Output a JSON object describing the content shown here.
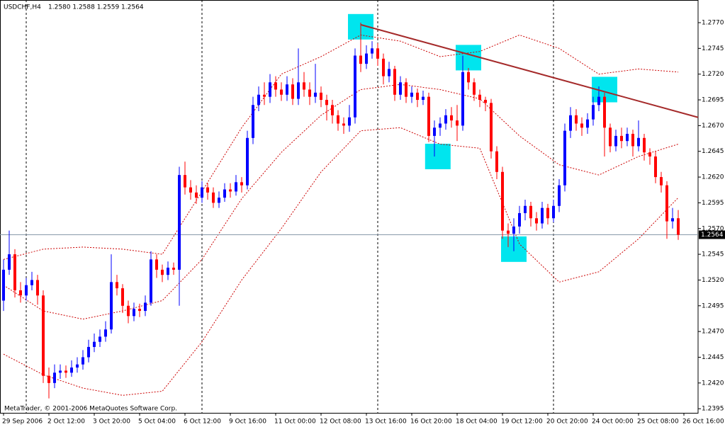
{
  "chart_data": {
    "type": "candlestick",
    "title": "USDCHF,H4",
    "header_quote": "1.2580 1.2588 1.2559 1.2564",
    "annotation": "MetaTrader, © 2001-2006 MetaQuotes Software Corp.",
    "bull_color": "#0000ff",
    "bear_color": "#ff0000",
    "open": [
      1.25,
      1.253,
      1.2545,
      1.251,
      1.2505,
      1.2515,
      1.252,
      1.2505,
      1.2427,
      1.242,
      1.243,
      1.2432,
      1.243,
      1.2435,
      1.2438,
      1.2445,
      1.2455,
      1.246,
      1.2465,
      1.2472,
      1.2518,
      1.2512,
      1.2495,
      1.2485,
      1.2492,
      1.249,
      1.2498,
      1.254,
      1.253,
      1.2525,
      1.2532,
      1.253,
      1.2622,
      1.261,
      1.2605,
      1.26,
      1.261,
      1.2605,
      1.2595,
      1.26,
      1.2608,
      1.2606,
      1.2615,
      1.2612,
      1.2658,
      1.269,
      1.27,
      1.2698,
      1.2712,
      1.2705,
      1.27,
      1.271,
      1.2696,
      1.2712,
      1.2705,
      1.2698,
      1.2702,
      1.2695,
      1.269,
      1.268,
      1.2672,
      1.267,
      1.2678,
      1.2738,
      1.273,
      1.274,
      1.2745,
      1.2735,
      1.2718,
      1.2725,
      1.27,
      1.2712,
      1.2698,
      1.2702,
      1.2695,
      1.2698,
      1.266,
      1.2668,
      1.2672,
      1.268,
      1.2675,
      1.267,
      1.2722,
      1.2712,
      1.27,
      1.2695,
      1.2692,
      1.2645,
      1.2625,
      1.2568,
      1.2565,
      1.2572,
      1.2585,
      1.2592,
      1.258,
      1.2575,
      1.259,
      1.258,
      1.2592,
      1.2612,
      1.2665,
      1.268,
      1.2672,
      1.2668,
      1.2676,
      1.269,
      1.2698,
      1.2668,
      1.265,
      1.266,
      1.2655,
      1.2662,
      1.265,
      1.2658,
      1.2644,
      1.264,
      1.262,
      1.2612,
      1.2577,
      1.258
    ],
    "high": [
      1.254,
      1.2568,
      1.255,
      1.2518,
      1.2522,
      1.2528,
      1.2525,
      1.251,
      1.2435,
      1.2438,
      1.2438,
      1.2437,
      1.2442,
      1.2445,
      1.2452,
      1.2462,
      1.2468,
      1.2472,
      1.248,
      1.2545,
      1.2525,
      1.2516,
      1.25,
      1.2498,
      1.2497,
      1.2505,
      1.2548,
      1.2545,
      1.2535,
      1.2538,
      1.2537,
      1.263,
      1.2635,
      1.2617,
      1.2612,
      1.2616,
      1.2614,
      1.261,
      1.2606,
      1.2614,
      1.2614,
      1.2622,
      1.262,
      1.2665,
      1.2698,
      1.2708,
      1.2712,
      1.272,
      1.2718,
      1.2712,
      1.2718,
      1.2716,
      1.2745,
      1.2722,
      1.2712,
      1.273,
      1.2708,
      1.27,
      1.2695,
      1.2685,
      1.2678,
      1.269,
      1.2745,
      1.277,
      1.2748,
      1.2752,
      1.275,
      1.274,
      1.2732,
      1.2728,
      1.2718,
      1.2716,
      1.2708,
      1.2706,
      1.2704,
      1.2702,
      1.2675,
      1.2678,
      1.2686,
      1.2688,
      1.269,
      1.2738,
      1.2726,
      1.2716,
      1.2705,
      1.2698,
      1.2696,
      1.265,
      1.263,
      1.2575,
      1.258,
      1.2592,
      1.2598,
      1.2596,
      1.2586,
      1.2596,
      1.2594,
      1.2598,
      1.2618,
      1.2672,
      1.2688,
      1.2686,
      1.2678,
      1.2682,
      1.2698,
      1.2708,
      1.2702,
      1.2672,
      1.2666,
      1.2668,
      1.2668,
      1.2666,
      1.2675,
      1.2662,
      1.2648,
      1.2645,
      1.2625,
      1.2616,
      1.259,
      1.2588
    ],
    "low": [
      1.249,
      1.2525,
      1.2503,
      1.2498,
      1.25,
      1.251,
      1.2496,
      1.242,
      1.2405,
      1.2415,
      1.2424,
      1.2425,
      1.2426,
      1.243,
      1.2433,
      1.244,
      1.245,
      1.2455,
      1.246,
      1.2468,
      1.2505,
      1.2488,
      1.2478,
      1.248,
      1.2484,
      1.2485,
      1.2495,
      1.2522,
      1.2518,
      1.252,
      1.2525,
      1.2495,
      1.2603,
      1.2598,
      1.2594,
      1.2595,
      1.2598,
      1.259,
      1.259,
      1.2596,
      1.26,
      1.2602,
      1.2605,
      1.2608,
      1.2652,
      1.2684,
      1.269,
      1.2692,
      1.2698,
      1.2694,
      1.2694,
      1.269,
      1.269,
      1.2698,
      1.269,
      1.2692,
      1.2688,
      1.2675,
      1.2672,
      1.2665,
      1.2662,
      1.2664,
      1.2672,
      1.2722,
      1.2725,
      1.2735,
      1.2728,
      1.271,
      1.2712,
      1.2694,
      1.2695,
      1.2692,
      1.2692,
      1.2688,
      1.269,
      1.2654,
      1.264,
      1.266,
      1.2666,
      1.2668,
      1.2655,
      1.2665,
      1.2705,
      1.2694,
      1.2688,
      1.2684,
      1.2638,
      1.2618,
      1.256,
      1.2552,
      1.2548,
      1.2565,
      1.2578,
      1.2572,
      1.2568,
      1.257,
      1.2574,
      1.2576,
      1.2586,
      1.2606,
      1.2658,
      1.2665,
      1.266,
      1.2662,
      1.267,
      1.2684,
      1.264,
      1.2644,
      1.2645,
      1.2648,
      1.265,
      1.264,
      1.2645,
      1.2636,
      1.2632,
      1.2614,
      1.2605,
      1.256,
      1.257,
      1.2559
    ],
    "close": [
      1.253,
      1.2545,
      1.251,
      1.2505,
      1.2515,
      1.252,
      1.2505,
      1.2427,
      1.242,
      1.243,
      1.2432,
      1.243,
      1.2435,
      1.2438,
      1.2445,
      1.2455,
      1.246,
      1.2465,
      1.2472,
      1.2518,
      1.2512,
      1.2495,
      1.2485,
      1.2492,
      1.249,
      1.2498,
      1.254,
      1.253,
      1.2525,
      1.2532,
      1.253,
      1.2622,
      1.261,
      1.2605,
      1.26,
      1.261,
      1.2605,
      1.2595,
      1.26,
      1.2608,
      1.2606,
      1.2615,
      1.2612,
      1.2658,
      1.269,
      1.27,
      1.2698,
      1.2712,
      1.2705,
      1.27,
      1.271,
      1.2696,
      1.2712,
      1.2705,
      1.2698,
      1.2702,
      1.2695,
      1.269,
      1.268,
      1.2672,
      1.267,
      1.2678,
      1.2738,
      1.273,
      1.274,
      1.2745,
      1.2735,
      1.2718,
      1.2725,
      1.27,
      1.2712,
      1.2698,
      1.2702,
      1.2695,
      1.2698,
      1.266,
      1.2668,
      1.2672,
      1.268,
      1.2675,
      1.267,
      1.2722,
      1.2712,
      1.27,
      1.2695,
      1.2692,
      1.2645,
      1.2625,
      1.2568,
      1.2565,
      1.2572,
      1.2585,
      1.2592,
      1.258,
      1.2575,
      1.259,
      1.258,
      1.2592,
      1.2612,
      1.2665,
      1.268,
      1.2672,
      1.2668,
      1.2676,
      1.269,
      1.2698,
      1.2668,
      1.265,
      1.266,
      1.2655,
      1.2662,
      1.265,
      1.2658,
      1.2644,
      1.264,
      1.262,
      1.2612,
      1.2577,
      1.258,
      1.2564
    ],
    "bands": {
      "color": "#cc0000",
      "x": [
        0,
        7,
        14,
        21,
        28,
        35,
        42,
        49,
        56,
        63,
        70,
        77,
        84,
        91,
        98,
        105,
        112,
        119
      ],
      "series": [
        {
          "values": [
            1.254,
            1.255,
            1.2552,
            1.255,
            1.2545,
            1.2606,
            1.2668,
            1.272,
            1.2737,
            1.2758,
            1.2752,
            1.2737,
            1.2742,
            1.2758,
            1.2745,
            1.272,
            1.2725,
            1.2722
          ]
        },
        {
          "values": [
            1.2515,
            1.249,
            1.2482,
            1.249,
            1.25,
            1.254,
            1.2599,
            1.2644,
            1.268,
            1.2705,
            1.271,
            1.2705,
            1.2696,
            1.266,
            1.2632,
            1.2622,
            1.264,
            1.2652
          ]
        },
        {
          "values": [
            1.2448,
            1.2428,
            1.2415,
            1.2408,
            1.2412,
            1.246,
            1.252,
            1.257,
            1.2625,
            1.2665,
            1.2668,
            1.2652,
            1.2648,
            1.2555,
            1.2518,
            1.2528,
            1.256,
            1.26
          ]
        }
      ]
    },
    "trendline": {
      "color": "#a52a2a",
      "x": [
        63,
        122.5
      ],
      "y": [
        1.2768,
        1.2678
      ]
    },
    "highlights": {
      "color": "#00e5ee",
      "x": [
        63,
        82,
        76.6,
        90,
        106
      ],
      "y": [
        1.2766,
        1.2736,
        1.264,
        1.255,
        1.2705
      ]
    },
    "separators": [
      4,
      35,
      66,
      97
    ],
    "current_price": 1.2564,
    "xlim": [
      -0.625,
      122.5
    ],
    "ylim": [
      1.2391,
      1.2792
    ],
    "xticks": [
      {
        "value": 0,
        "label": "29 Sep 2006"
      },
      {
        "value": 8,
        "label": "2 Oct 12:00"
      },
      {
        "value": 16,
        "label": "3 Oct 20:00"
      },
      {
        "value": 24,
        "label": "5 Oct 04:00"
      },
      {
        "value": 32,
        "label": "6 Oct 12:00"
      },
      {
        "value": 40,
        "label": "9 Oct 16:00"
      },
      {
        "value": 48,
        "label": "11 Oct 00:00"
      },
      {
        "value": 56,
        "label": "12 Oct 08:00"
      },
      {
        "value": 64,
        "label": "13 Oct 16:00"
      },
      {
        "value": 72,
        "label": "16 Oct 20:00"
      },
      {
        "value": 80,
        "label": "18 Oct 04:00"
      },
      {
        "value": 88,
        "label": "19 Oct 12:00"
      },
      {
        "value": 96,
        "label": "20 Oct 20:00"
      },
      {
        "value": 104,
        "label": "24 Oct 00:00"
      },
      {
        "value": 112,
        "label": "25 Oct 08:00"
      },
      {
        "value": 120,
        "label": "26 Oct 16:00"
      }
    ],
    "yticks": [
      {
        "value": 1.277,
        "label": "1.2770"
      },
      {
        "value": 1.2745,
        "label": "1.2745"
      },
      {
        "value": 1.272,
        "label": "1.2720"
      },
      {
        "value": 1.2695,
        "label": "1.2695"
      },
      {
        "value": 1.267,
        "label": "1.2670"
      },
      {
        "value": 1.2645,
        "label": "1.2645"
      },
      {
        "value": 1.262,
        "label": "1.2620"
      },
      {
        "value": 1.2595,
        "label": "1.2595"
      },
      {
        "value": 1.257,
        "label": "1.2570"
      },
      {
        "value": 1.2545,
        "label": "1.2545"
      },
      {
        "value": 1.252,
        "label": "1.2520"
      },
      {
        "value": 1.2495,
        "label": "1.2495"
      },
      {
        "value": 1.247,
        "label": "1.2470"
      },
      {
        "value": 1.2445,
        "label": "1.2445"
      },
      {
        "value": 1.242,
        "label": "1.2420"
      },
      {
        "value": 1.2395,
        "label": "1.2395"
      }
    ]
  }
}
